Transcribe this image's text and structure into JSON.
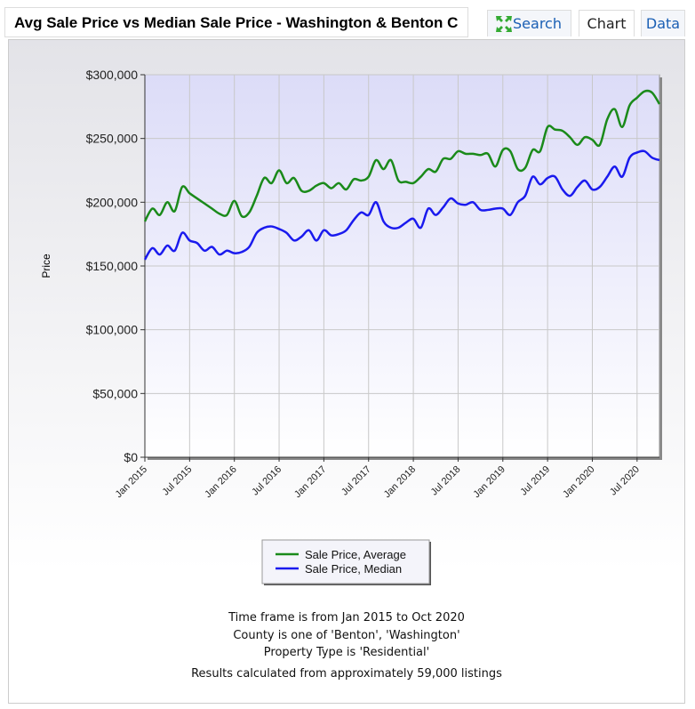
{
  "header": {
    "title": "Avg Sale Price vs Median Sale Price - Washington & Benton C",
    "tabs": [
      "Search",
      "Chart",
      "Data"
    ]
  },
  "chart_data": {
    "type": "line",
    "y_label": "Price",
    "categories": [
      "Jan 2015",
      null,
      null,
      null,
      null,
      null,
      "Jul 2015",
      null,
      null,
      null,
      null,
      null,
      "Jan 2016",
      null,
      null,
      null,
      null,
      null,
      "Jul 2016",
      null,
      null,
      null,
      null,
      null,
      "Jan 2017",
      null,
      null,
      null,
      null,
      null,
      "Jul 2017",
      null,
      null,
      null,
      null,
      null,
      "Jan 2018",
      null,
      null,
      null,
      null,
      null,
      "Jul 2018",
      null,
      null,
      null,
      null,
      null,
      "Jan 2019",
      null,
      null,
      null,
      null,
      null,
      "Jul 2019",
      null,
      null,
      null,
      null,
      null,
      "Jan 2020",
      null,
      null,
      null,
      null,
      null,
      "Jul 2020",
      null,
      null,
      null
    ],
    "series": [
      {
        "name": "Sale Price, Average",
        "color": "#1a8a1a",
        "values": [
          185000,
          195000,
          190000,
          200000,
          193000,
          212000,
          207000,
          203000,
          199000,
          195000,
          191000,
          190000,
          201000,
          189000,
          192000,
          205000,
          219000,
          215000,
          225000,
          215000,
          219000,
          209000,
          209000,
          213000,
          215000,
          211000,
          215000,
          210000,
          218000,
          217000,
          220000,
          233000,
          226000,
          233000,
          217000,
          216000,
          215000,
          220000,
          226000,
          224000,
          234000,
          234000,
          240000,
          238000,
          238000,
          237000,
          238000,
          228000,
          241000,
          240000,
          226000,
          227000,
          241000,
          240000,
          259000,
          257000,
          256000,
          251000,
          245000,
          251000,
          249000,
          245000,
          265000,
          273000,
          259000,
          276000,
          282000,
          287000,
          286000,
          277000
        ]
      },
      {
        "name": "Sale Price, Median",
        "color": "#1a1aee",
        "values": [
          155000,
          164000,
          159000,
          166000,
          162000,
          176000,
          170000,
          168000,
          162000,
          165000,
          159000,
          162000,
          160000,
          161000,
          165000,
          176000,
          180000,
          181000,
          179000,
          176000,
          170000,
          173000,
          178000,
          170000,
          178000,
          174000,
          175000,
          178000,
          186000,
          192000,
          190000,
          200000,
          185000,
          180000,
          180000,
          184000,
          187000,
          180000,
          195000,
          190000,
          196000,
          203000,
          199000,
          198000,
          200000,
          194000,
          194000,
          195000,
          195000,
          190000,
          200000,
          205000,
          220000,
          214000,
          219000,
          220000,
          210000,
          205000,
          212000,
          217000,
          210000,
          212000,
          220000,
          228000,
          220000,
          235000,
          239000,
          240000,
          235000,
          233000
        ]
      }
    ],
    "ylim": [
      0,
      300000
    ],
    "yticks": [
      {
        "value": 0,
        "label": "$0"
      },
      {
        "value": 50000,
        "label": "$50,000"
      },
      {
        "value": 100000,
        "label": "$100,000"
      },
      {
        "value": 150000,
        "label": "$150,000"
      },
      {
        "value": 200000,
        "label": "$200,000"
      },
      {
        "value": 250000,
        "label": "$250,000"
      },
      {
        "value": 300000,
        "label": "$300,000"
      }
    ],
    "grid": true
  },
  "footer": {
    "lines": [
      "Time frame is from Jan 2015 to Oct 2020",
      "County is one of 'Benton', 'Washington'",
      "Property Type is 'Residential'",
      "Results calculated from approximately 59,000 listings"
    ]
  }
}
